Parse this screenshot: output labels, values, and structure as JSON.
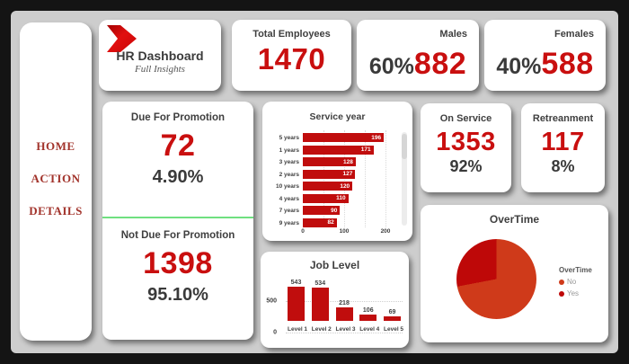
{
  "sidebar": {
    "items": [
      {
        "label": "HOME"
      },
      {
        "label": "ACTION"
      },
      {
        "label": "DETAILS"
      }
    ]
  },
  "logo": {
    "title": "HR Dashboard",
    "subtitle": "Full Insights",
    "icon": "red-chevron-arrow"
  },
  "cards": {
    "total_employees": {
      "title": "Total Employees",
      "value": "1470"
    },
    "males": {
      "title": "Males",
      "percent": "60%",
      "value": "882"
    },
    "females": {
      "title": "Females",
      "percent": "40%",
      "value": "588"
    },
    "due_for_promotion": {
      "title": "Due For Promotion",
      "value": "72",
      "percent": "4.90%"
    },
    "not_due_for_promotion": {
      "title": "Not Due For Promotion",
      "value": "1398",
      "percent": "95.10%"
    },
    "on_service": {
      "title": "On Service",
      "value": "1353",
      "percent": "92%"
    },
    "retreanment": {
      "title": "Retreanment",
      "value": "117",
      "percent": "8%"
    }
  },
  "chart_data": [
    {
      "type": "bar",
      "orientation": "horizontal",
      "title": "Service year",
      "categories": [
        "5 years",
        "1 years",
        "3 years",
        "2 years",
        "10 years",
        "4 years",
        "7 years",
        "9 years"
      ],
      "values": [
        196,
        171,
        128,
        127,
        120,
        110,
        90,
        82
      ],
      "xlim": [
        0,
        200
      ],
      "xticks": [
        0,
        100,
        200
      ],
      "gridlines": [
        50,
        100,
        150,
        200
      ],
      "bar_color": "#c00d0d",
      "value_labels": "inside-end-white",
      "scrollbar": true
    },
    {
      "type": "bar",
      "orientation": "vertical",
      "title": "Job Level",
      "categories": [
        "Level 1",
        "Level 2",
        "Level 3",
        "Level 4",
        "Level 5"
      ],
      "values": [
        543,
        534,
        218,
        106,
        69
      ],
      "ylim": [
        0,
        700
      ],
      "yticks": [
        0,
        500
      ],
      "bar_color": "#c00d0d",
      "value_labels": "above"
    },
    {
      "type": "pie",
      "title": "OverTime",
      "legend_title": "OverTime",
      "legend_position": "right",
      "slices": [
        {
          "label": "No",
          "percent_est": 72,
          "color": "#cf3a1a"
        },
        {
          "label": "Yes",
          "percent_est": 28,
          "color": "#be0808"
        }
      ]
    }
  ],
  "colors": {
    "frame": "#141414",
    "canvas": "#cdcdcd",
    "accent_red": "#c90f0f",
    "bar_red": "#c00d0d",
    "pie_no": "#cf3a1a",
    "pie_yes": "#be0808",
    "divider_green": "#6fe080",
    "sidebar_text": "#a2332b"
  }
}
